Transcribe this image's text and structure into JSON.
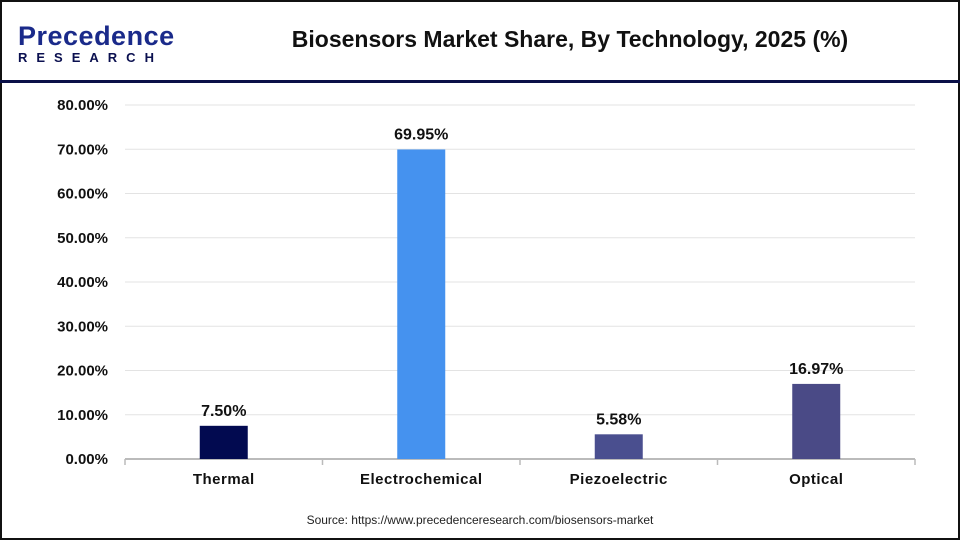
{
  "header": {
    "logo_top": "Precedence",
    "logo_bottom": "RESEARCH",
    "title": "Biosensors Market Share, By Technology, 2025 (%)"
  },
  "source": "Source: https://www.precedenceresearch.com/biosensors-market",
  "chart_data": {
    "type": "bar",
    "title": "Biosensors Market Share, By Technology, 2025 (%)",
    "categories": [
      "Thermal",
      "Electrochemical",
      "Piezoelectric",
      "Optical"
    ],
    "values": [
      7.5,
      69.95,
      5.58,
      16.97
    ],
    "data_labels": [
      "7.50%",
      "69.95%",
      "5.58%",
      "16.97%"
    ],
    "colors": [
      "#020a50",
      "#4592ef",
      "#4a4f8f",
      "#4a4a86"
    ],
    "ylim": [
      0,
      80
    ],
    "yticks": [
      "0.00%",
      "10.00%",
      "20.00%",
      "30.00%",
      "40.00%",
      "50.00%",
      "60.00%",
      "70.00%",
      "80.00%"
    ],
    "grid": true,
    "xlabel": "",
    "ylabel": ""
  }
}
